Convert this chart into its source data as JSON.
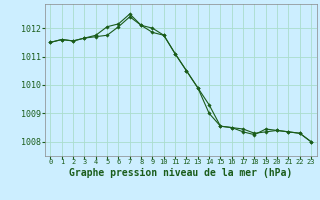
{
  "title": "Graphe pression niveau de la mer (hPa)",
  "background_color": "#cceeff",
  "grid_color": "#aaddcc",
  "line_color": "#1a5c1a",
  "marker_color": "#1a5c1a",
  "xlim": [
    -0.5,
    23.5
  ],
  "ylim": [
    1007.5,
    1012.85
  ],
  "yticks": [
    1008,
    1009,
    1010,
    1011,
    1012
  ],
  "xtick_labels": [
    "0",
    "1",
    "2",
    "3",
    "4",
    "5",
    "6",
    "7",
    "8",
    "9",
    "10",
    "11",
    "12",
    "13",
    "14",
    "15",
    "16",
    "17",
    "18",
    "19",
    "20",
    "21",
    "22",
    "23"
  ],
  "line1": [
    1011.5,
    1011.6,
    1011.55,
    1011.65,
    1011.7,
    1011.75,
    1012.05,
    1012.4,
    1012.1,
    1011.85,
    1011.75,
    1011.1,
    1010.5,
    1009.9,
    1009.3,
    1008.55,
    1008.5,
    1008.45,
    1008.3,
    1008.35,
    1008.4,
    1008.35,
    1008.3,
    1008.0
  ],
  "line2": [
    1011.5,
    1011.6,
    1011.55,
    1011.65,
    1011.75,
    1012.05,
    1012.15,
    1012.5,
    1012.1,
    1012.0,
    1011.75,
    1011.1,
    1010.5,
    1009.9,
    1009.0,
    1008.55,
    1008.5,
    1008.35,
    1008.25,
    1008.45,
    1008.4,
    1008.35,
    1008.3,
    1008.0
  ],
  "title_fontsize": 7,
  "tick_fontsize": 6,
  "xtick_fontsize": 5
}
